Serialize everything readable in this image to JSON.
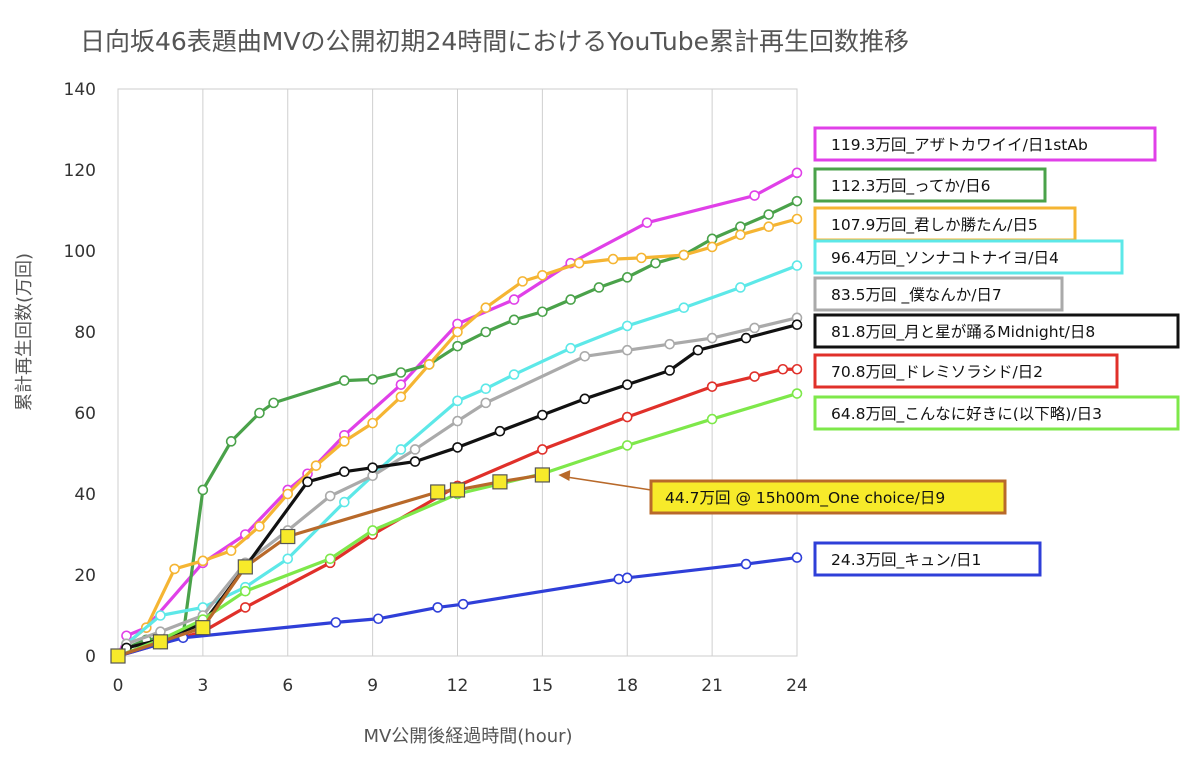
{
  "chart_data": {
    "type": "line",
    "title": "日向坂46表題曲MVの公開初期24時間におけるYouTube累計再生回数推移",
    "xlabel": "MV公開後経過時間(hour)",
    "ylabel": "累計再生回数(万回)",
    "xlim": [
      0,
      24
    ],
    "ylim": [
      0,
      140
    ],
    "xticks": [
      "0",
      "3",
      "6",
      "9",
      "12",
      "15",
      "18",
      "21",
      "24"
    ],
    "yticks": [
      "0",
      "20",
      "40",
      "60",
      "80",
      "100",
      "120",
      "140"
    ],
    "grid": "vertical",
    "legend_placement": "right",
    "series": [
      {
        "name": "119.3万回_アザトカワイイ/日1stAb",
        "color": "#e040e8",
        "marker": "circle",
        "points": [
          [
            0,
            0
          ],
          [
            0.3,
            5
          ],
          [
            1,
            7
          ],
          [
            3,
            23
          ],
          [
            4.5,
            30
          ],
          [
            6,
            41
          ],
          [
            6.7,
            45
          ],
          [
            8,
            54.5
          ],
          [
            10,
            67
          ],
          [
            12,
            82
          ],
          [
            14,
            88
          ],
          [
            16,
            97
          ],
          [
            18.7,
            107
          ],
          [
            22.5,
            113.7
          ],
          [
            24,
            119.3
          ]
        ]
      },
      {
        "name": "112.3万回_ってか/日6",
        "color": "#4aa24a",
        "marker": "circle",
        "points": [
          [
            0,
            0
          ],
          [
            0.3,
            2
          ],
          [
            1,
            4
          ],
          [
            2.3,
            5
          ],
          [
            3,
            41
          ],
          [
            4,
            53
          ],
          [
            5,
            60
          ],
          [
            5.5,
            62.5
          ],
          [
            8,
            68
          ],
          [
            9,
            68.3
          ],
          [
            10,
            70
          ],
          [
            11,
            72
          ],
          [
            12,
            76.5
          ],
          [
            13,
            80
          ],
          [
            14,
            83
          ],
          [
            15,
            85
          ],
          [
            16,
            88
          ],
          [
            17,
            91
          ],
          [
            18,
            93.5
          ],
          [
            19,
            97
          ],
          [
            20,
            99
          ],
          [
            21,
            103
          ],
          [
            22,
            106
          ],
          [
            23,
            109
          ],
          [
            24,
            112.3
          ]
        ]
      },
      {
        "name": "107.9万回_君しか勝たん/日5",
        "color": "#f5b533",
        "marker": "circle",
        "points": [
          [
            0,
            0
          ],
          [
            0.3,
            3
          ],
          [
            1,
            7
          ],
          [
            2,
            21.5
          ],
          [
            3,
            23.5
          ],
          [
            4,
            26
          ],
          [
            5,
            32
          ],
          [
            6,
            40
          ],
          [
            7,
            47
          ],
          [
            8,
            53
          ],
          [
            9,
            57.5
          ],
          [
            10,
            64
          ],
          [
            11,
            72
          ],
          [
            12,
            80
          ],
          [
            13,
            86
          ],
          [
            14.3,
            92.5
          ],
          [
            15,
            94
          ],
          [
            16.3,
            97
          ],
          [
            17.5,
            98
          ],
          [
            18.5,
            98.3
          ],
          [
            20,
            99
          ],
          [
            21,
            101
          ],
          [
            22,
            104
          ],
          [
            23,
            106
          ],
          [
            24,
            107.9
          ]
        ]
      },
      {
        "name": "96.4万回_ソンナコトナイヨ/日4",
        "color": "#5de8e8",
        "marker": "circle",
        "points": [
          [
            0,
            0
          ],
          [
            0.3,
            3
          ],
          [
            1.5,
            10
          ],
          [
            3,
            12
          ],
          [
            4.5,
            17
          ],
          [
            6,
            24
          ],
          [
            8,
            38
          ],
          [
            10,
            51
          ],
          [
            12,
            63
          ],
          [
            13,
            66
          ],
          [
            14,
            69.5
          ],
          [
            16,
            76
          ],
          [
            18,
            81.5
          ],
          [
            20,
            86
          ],
          [
            22,
            91
          ],
          [
            24,
            96.4
          ]
        ]
      },
      {
        "name": "83.5万回 _僕なんか/日7",
        "color": "#aaaaaa",
        "marker": "circle",
        "points": [
          [
            0,
            0
          ],
          [
            0.3,
            3
          ],
          [
            1.5,
            6
          ],
          [
            3,
            10
          ],
          [
            4.5,
            23
          ],
          [
            6,
            31
          ],
          [
            7.5,
            39.5
          ],
          [
            9,
            44.5
          ],
          [
            10.5,
            51
          ],
          [
            12,
            58
          ],
          [
            13,
            62.5
          ],
          [
            16.5,
            74
          ],
          [
            18,
            75.5
          ],
          [
            19.5,
            77
          ],
          [
            21,
            78.5
          ],
          [
            22.5,
            81
          ],
          [
            24,
            83.5
          ]
        ]
      },
      {
        "name": "81.8万回_月と星が踊るMidnight/日8",
        "color": "#111111",
        "marker": "circle",
        "points": [
          [
            0,
            0
          ],
          [
            0.3,
            2
          ],
          [
            1.5,
            4
          ],
          [
            3,
            8
          ],
          [
            4.5,
            22
          ],
          [
            6.7,
            43
          ],
          [
            8,
            45.5
          ],
          [
            9,
            46.5
          ],
          [
            10.5,
            48
          ],
          [
            12,
            51.5
          ],
          [
            13.5,
            55.5
          ],
          [
            15,
            59.5
          ],
          [
            16.5,
            63.5
          ],
          [
            18,
            67
          ],
          [
            19.5,
            70.5
          ],
          [
            20.5,
            75.5
          ],
          [
            22.2,
            78.5
          ],
          [
            24,
            81.8
          ]
        ]
      },
      {
        "name": "70.8万回_ドレミソラシド/日2",
        "color": "#e0302a",
        "marker": "circle",
        "points": [
          [
            0,
            0
          ],
          [
            1.5,
            3
          ],
          [
            3,
            6
          ],
          [
            4.5,
            12
          ],
          [
            7.5,
            23
          ],
          [
            9,
            30
          ],
          [
            12,
            42
          ],
          [
            15,
            51
          ],
          [
            18,
            59
          ],
          [
            21,
            66.5
          ],
          [
            22.5,
            69
          ],
          [
            23.5,
            70.8
          ],
          [
            24,
            70.8
          ]
        ]
      },
      {
        "name": "64.8万回_こんなに好きに(以下略)/日3",
        "color": "#7ee84a",
        "marker": "circle",
        "points": [
          [
            0,
            0
          ],
          [
            1.5,
            4
          ],
          [
            3,
            9
          ],
          [
            4.5,
            16
          ],
          [
            7.5,
            24
          ],
          [
            9,
            31
          ],
          [
            12,
            40
          ],
          [
            15,
            45
          ],
          [
            18,
            52
          ],
          [
            21,
            58.5
          ],
          [
            24,
            64.8
          ]
        ]
      },
      {
        "name": "24.3万回_キュン/日1",
        "color": "#2f3fd8",
        "marker": "circle",
        "points": [
          [
            0,
            0
          ],
          [
            1.5,
            3
          ],
          [
            2.3,
            4.5
          ],
          [
            7.7,
            8.3
          ],
          [
            9.2,
            9.2
          ],
          [
            11.3,
            12
          ],
          [
            12.2,
            12.8
          ],
          [
            17.7,
            19
          ],
          [
            18,
            19.3
          ],
          [
            22.2,
            22.7
          ],
          [
            24,
            24.3
          ]
        ]
      },
      {
        "name": "44.7万回 @ 15h00m_One choice/日9",
        "color": "#b8692a",
        "marker": "square",
        "points": [
          [
            0,
            0
          ],
          [
            1.5,
            3.5
          ],
          [
            3,
            7
          ],
          [
            4.5,
            22
          ],
          [
            6,
            29.5
          ],
          [
            11.3,
            40.5
          ],
          [
            12,
            41
          ],
          [
            13.5,
            43
          ],
          [
            15,
            44.7
          ]
        ]
      }
    ]
  }
}
